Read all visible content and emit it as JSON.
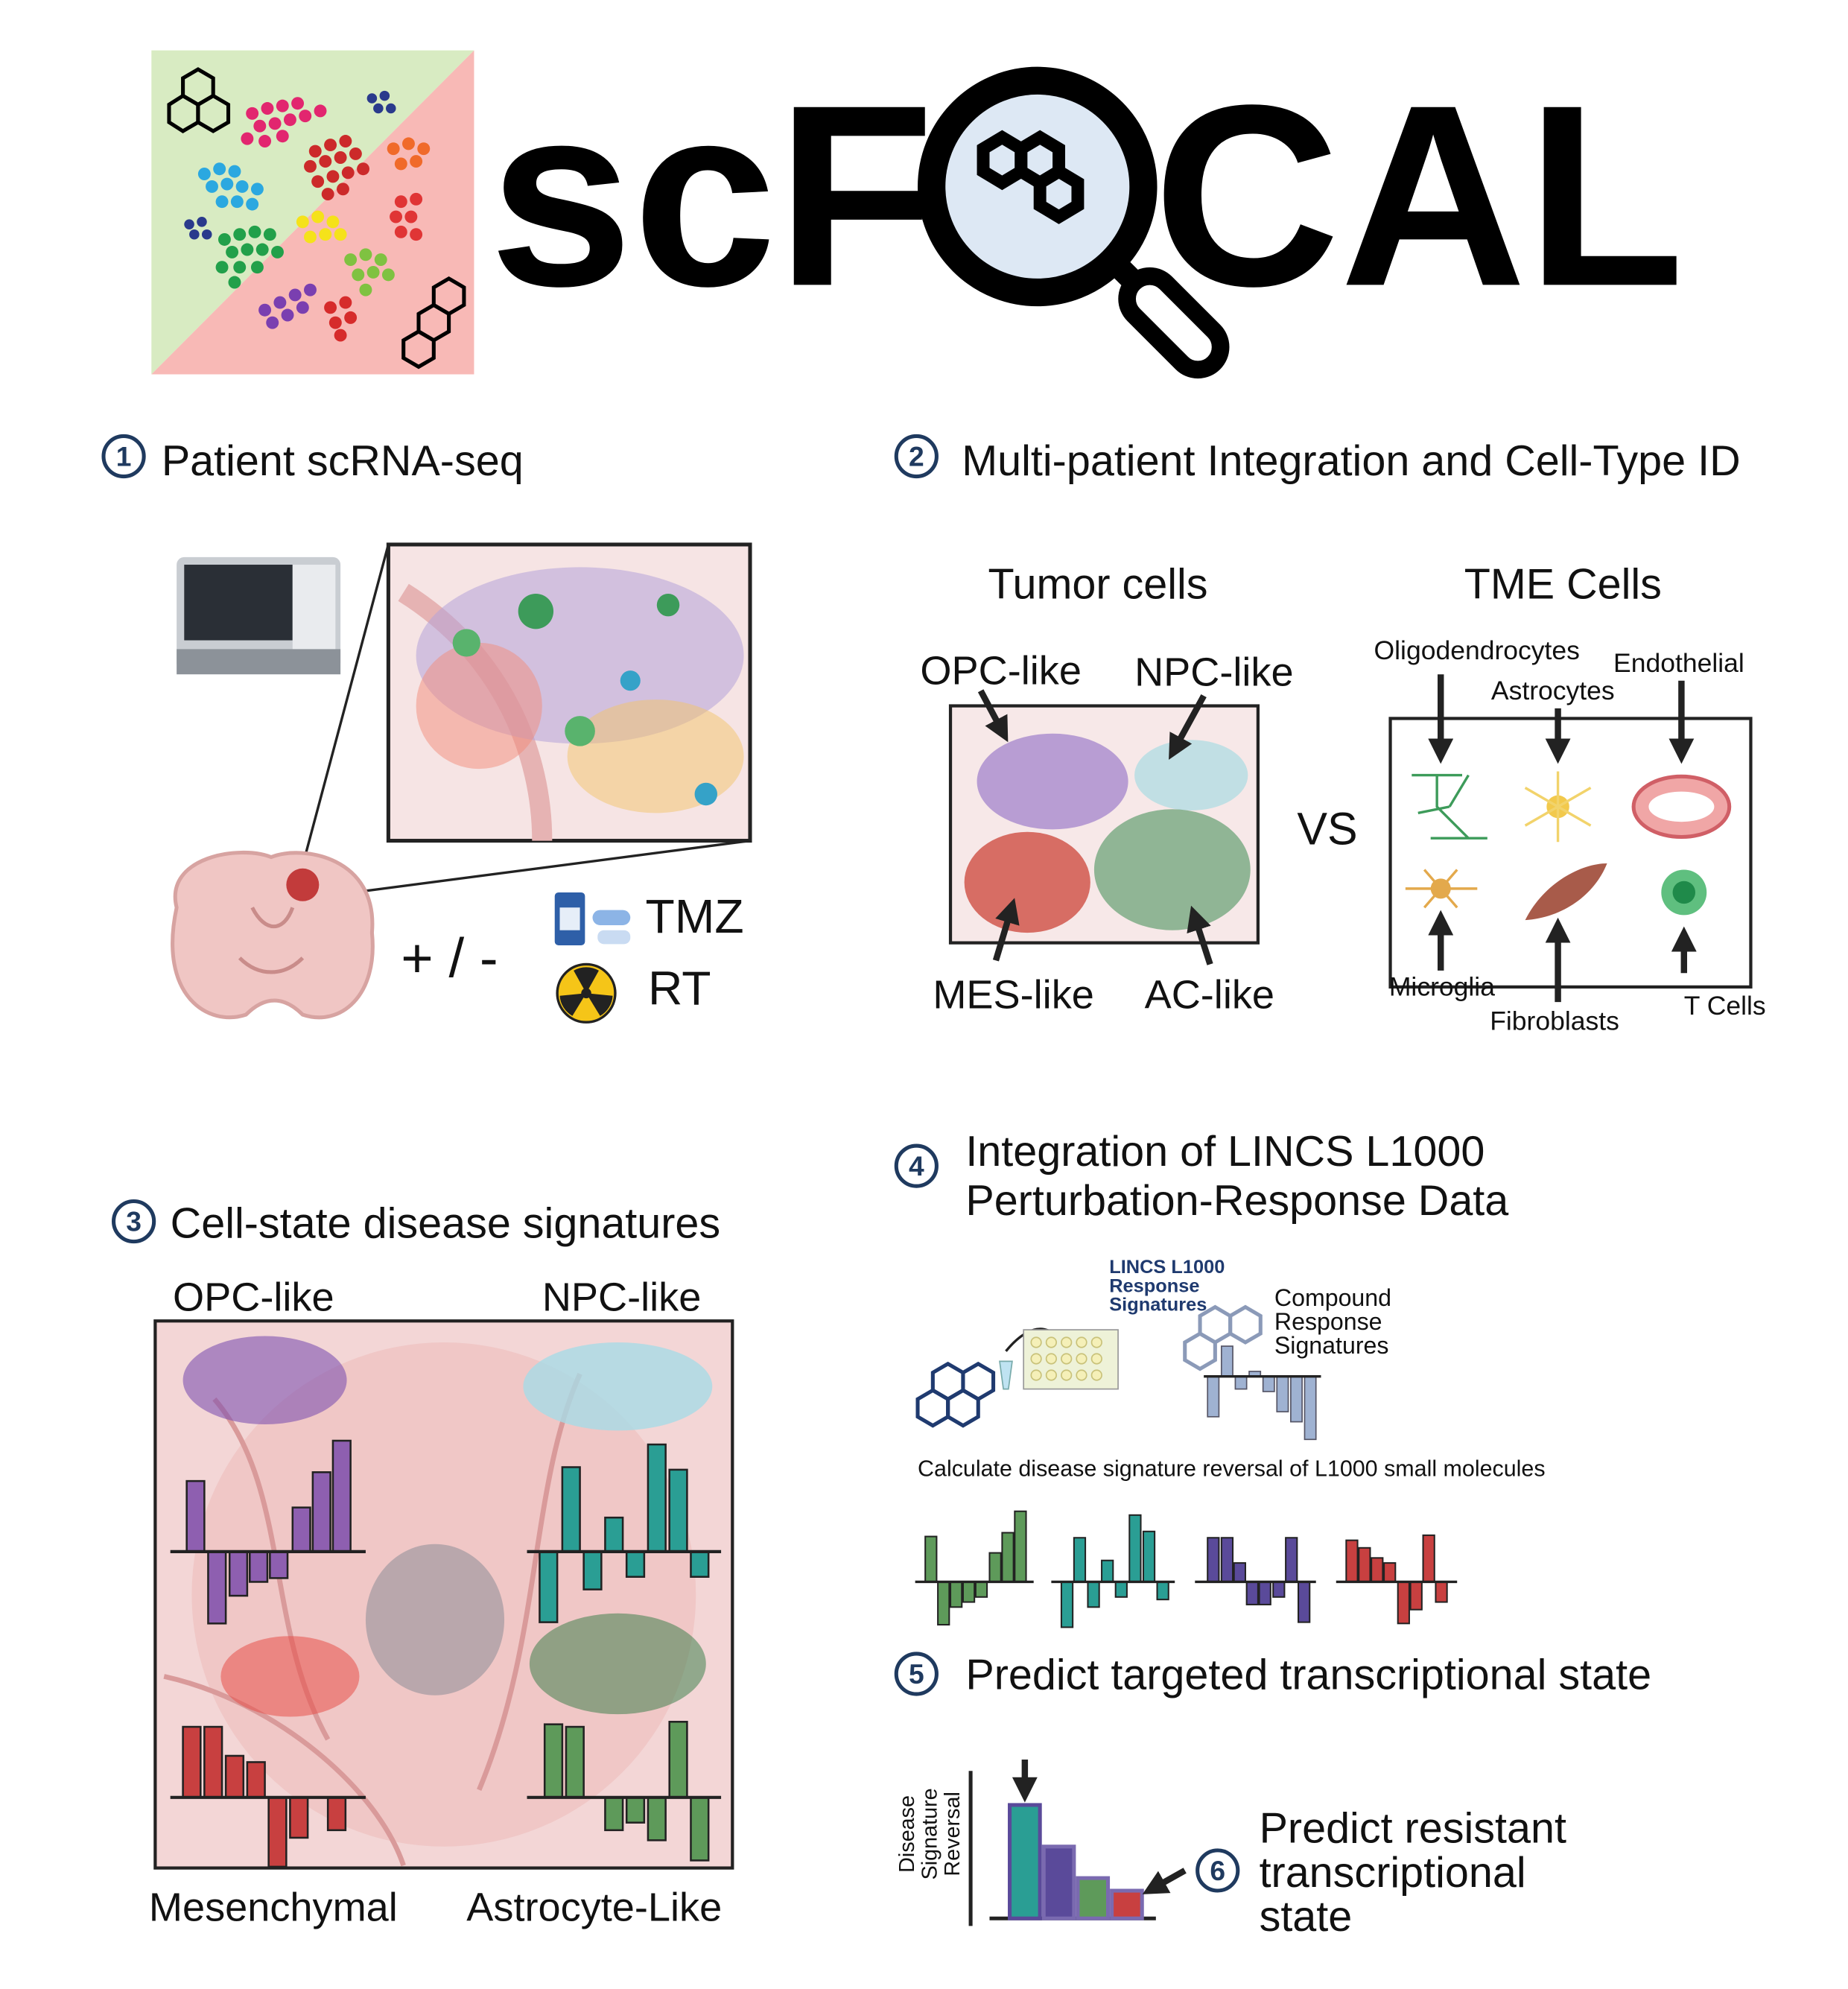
{
  "logo": {
    "left": "scF",
    "right": "CAL"
  },
  "sections": [
    {
      "number": "1",
      "title": "Patient scRNA-seq"
    },
    {
      "number": "2",
      "title": "Multi-patient Integration and Cell-Type ID"
    },
    {
      "number": "3",
      "title": "Cell-state disease signatures"
    },
    {
      "number": "4",
      "title_lines": [
        "Integration of LINCS L1000",
        "Perturbation-Response Data"
      ]
    },
    {
      "number": "5",
      "title": "Predict targeted transcriptional state"
    },
    {
      "number": "6",
      "title_lines": [
        "Predict resistant",
        "transcriptional",
        "state"
      ]
    }
  ],
  "treatment": {
    "sign": "+ / -",
    "drugs": [
      "TMZ",
      "RT"
    ]
  },
  "tumor_cells": {
    "title": "Tumor cells",
    "states": [
      "OPC-like",
      "NPC-like",
      "MES-like",
      "AC-like"
    ]
  },
  "vs": "VS",
  "tme_cells": {
    "title": "TME Cells",
    "types": [
      "Oligodendrocytes",
      "Endothelial",
      "Astrocytes",
      "Microglia",
      "Fibroblasts",
      "T Cells"
    ]
  },
  "signatures": {
    "labels": [
      "OPC-like",
      "NPC-like",
      "Mesenchymal",
      "Astrocyte-Like"
    ]
  },
  "lincs": {
    "panel": [
      "LINCS L1000",
      "Response",
      "Signatures"
    ],
    "compound": [
      "Compound",
      "Response",
      "Signatures"
    ],
    "caption": "Calculate disease signature reversal of L1000 small molecules"
  },
  "axis_label": [
    "Disease",
    "Signature",
    "Reversal"
  ]
}
